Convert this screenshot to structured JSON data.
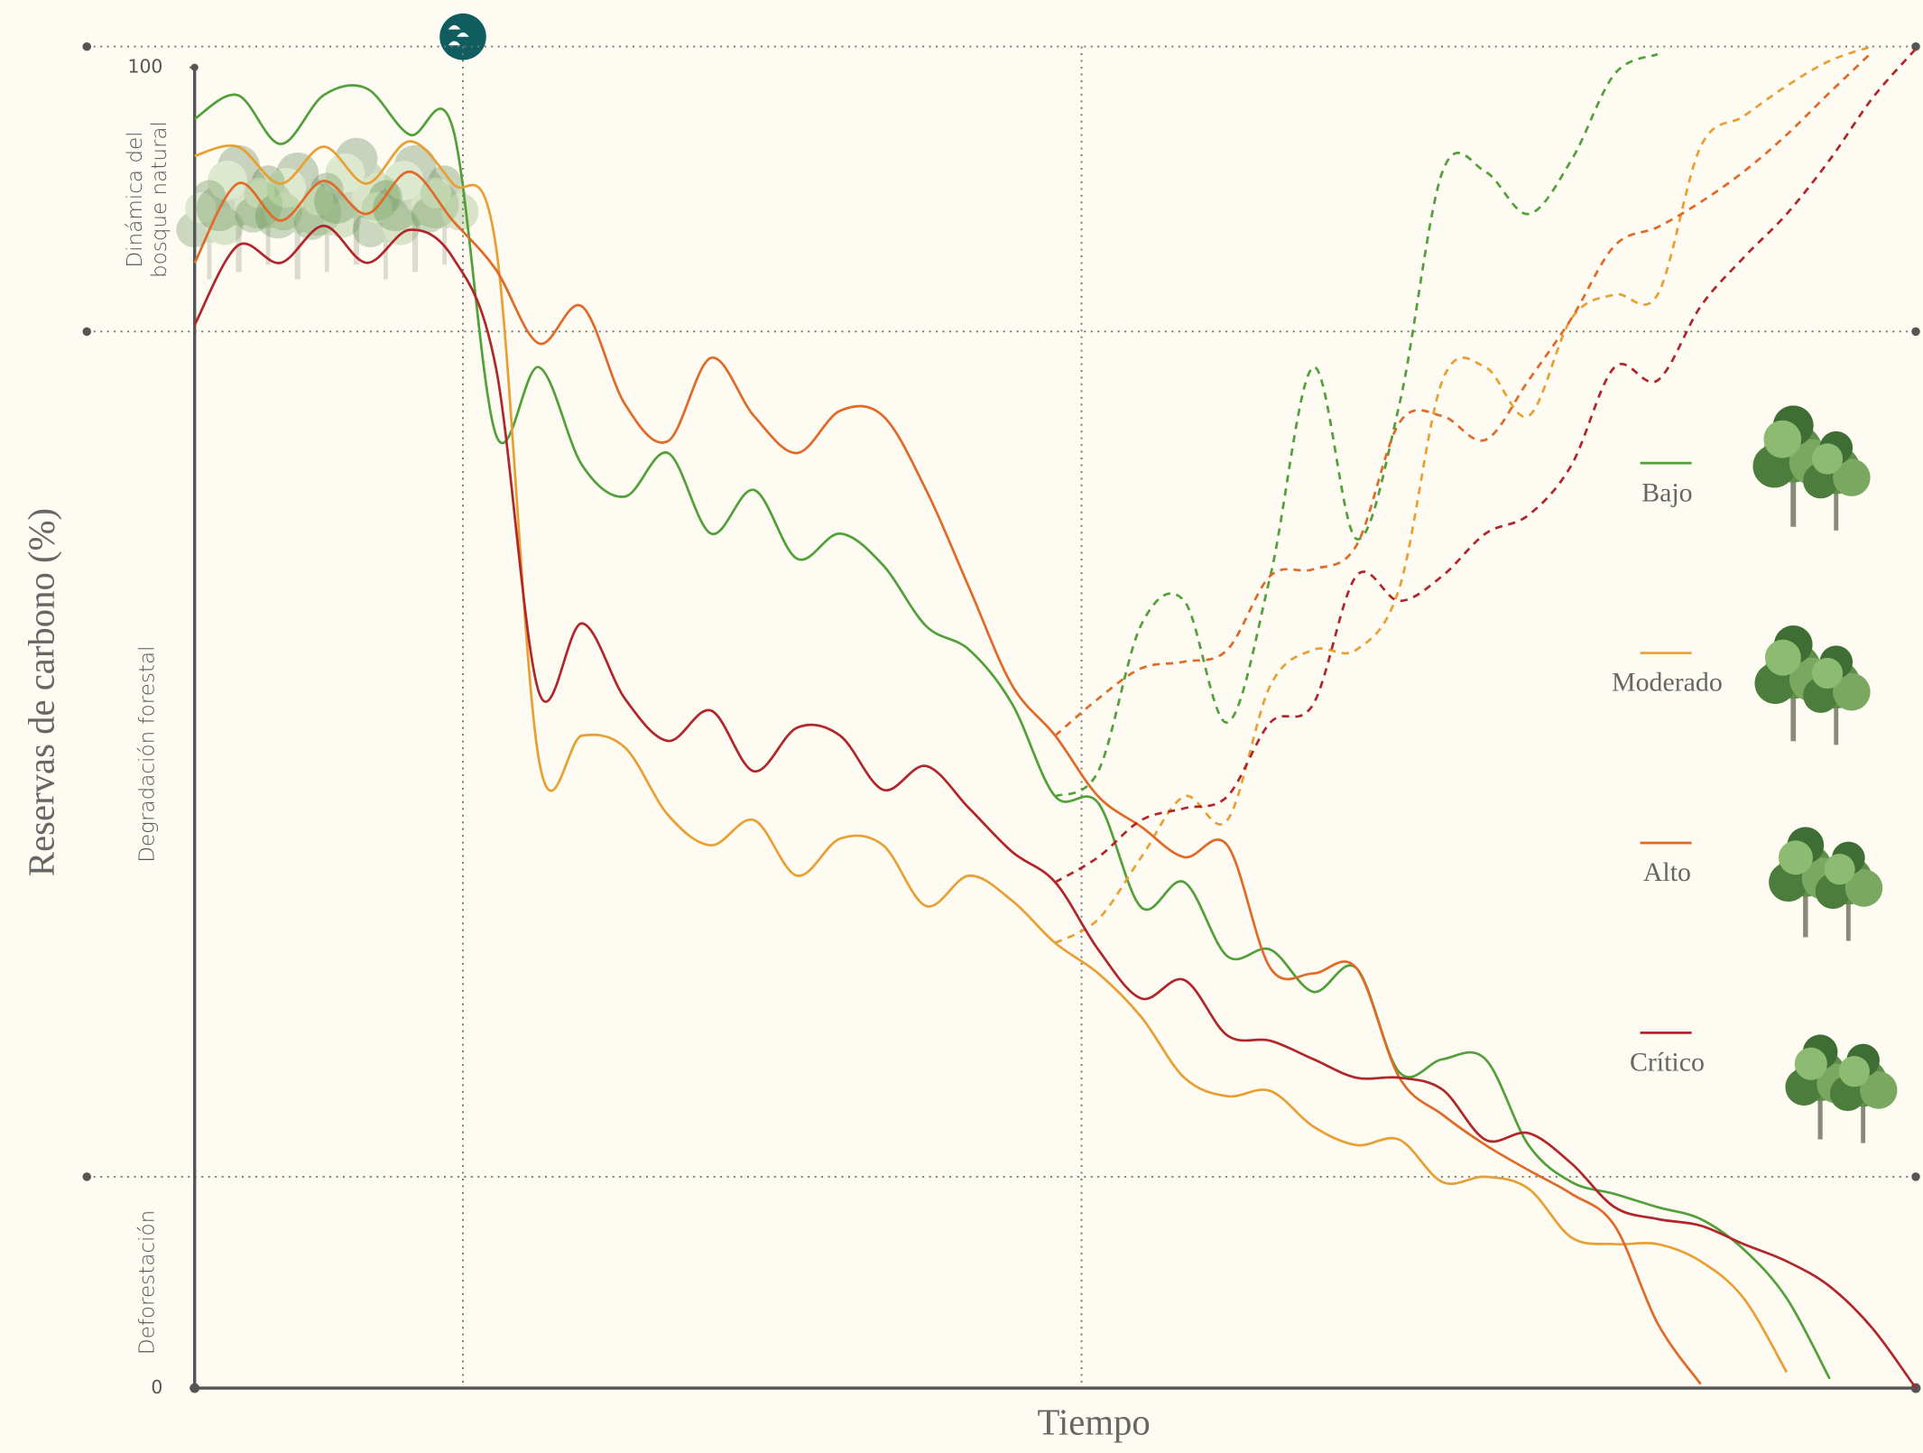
{
  "chart_data": {
    "type": "line",
    "y_label": "Reservas de carbono (%)",
    "x_label": "Tiempo",
    "ylim": [
      0,
      100
    ],
    "yticks": [
      0,
      100
    ],
    "zones": [
      {
        "label_lines": [
          "Dinámica del",
          "bosque natural"
        ],
        "from": 80,
        "to": 100
      },
      {
        "label_lines": [
          "Degradación forestal"
        ],
        "from": 16,
        "to": 80
      },
      {
        "label_lines": [
          "Deforestación"
        ],
        "from": 0,
        "to": 16
      }
    ],
    "legend": "right",
    "categories": [
      null,
      null,
      null,
      null,
      null,
      null,
      null,
      null,
      null,
      null,
      null,
      null,
      null,
      null,
      null,
      null,
      null,
      null,
      null,
      null,
      null,
      null,
      null,
      null,
      null,
      null,
      null,
      null,
      null,
      null,
      null,
      null,
      null,
      null,
      null,
      null,
      null,
      null,
      null,
      null,
      null
    ],
    "series": [
      {
        "name": "Bajo",
        "color": "#52a03a",
        "values": [
          96.1,
          97.9,
          94.2,
          97.9,
          98.4,
          94.9,
          95.4,
          72.2,
          77.3,
          69.9,
          67.5,
          70.8,
          64.7,
          68.0,
          62.8,
          64.7,
          62.3,
          57.7,
          55.9,
          51.8,
          44.8,
          44.3,
          36.4,
          38.3,
          32.7,
          33.2,
          30.0,
          31.8,
          23.9,
          24.9,
          24.9,
          18.4,
          15.6,
          14.7,
          13.7,
          12.8,
          10.5,
          6.8,
          0.7,
          null,
          null
        ],
        "projection_values": [
          null,
          null,
          null,
          null,
          null,
          null,
          null,
          null,
          null,
          null,
          null,
          null,
          null,
          null,
          null,
          null,
          null,
          null,
          null,
          null,
          44.8,
          46.7,
          57.8,
          59.6,
          50.4,
          61.5,
          77.3,
          64.3,
          74.5,
          92.1,
          92.1,
          88.9,
          93.0,
          99.5,
          101.0,
          null,
          null,
          null,
          null,
          null,
          null
        ]
      },
      {
        "name": "Moderado",
        "color": "#e9a032",
        "values": [
          93.3,
          94.0,
          91.2,
          94.0,
          91.2,
          94.4,
          91.2,
          86.5,
          47.6,
          49.4,
          48.5,
          43.4,
          41.1,
          43.0,
          38.8,
          41.6,
          41.1,
          36.5,
          38.8,
          36.9,
          33.7,
          31.4,
          28.1,
          23.5,
          22.1,
          22.5,
          19.8,
          18.4,
          18.8,
          15.6,
          16.0,
          15.1,
          11.4,
          10.9,
          10.9,
          9.6,
          6.8,
          1.2,
          null,
          null,
          null
        ],
        "projection_values": [
          null,
          null,
          null,
          null,
          null,
          null,
          null,
          null,
          null,
          null,
          null,
          null,
          null,
          null,
          null,
          null,
          null,
          null,
          null,
          null,
          33.7,
          35.5,
          40.2,
          44.8,
          43.0,
          53.2,
          55.9,
          55.9,
          60.6,
          76.3,
          77.3,
          73.6,
          81.0,
          82.8,
          82.8,
          94.0,
          96.3,
          98.6,
          100.5,
          101.6,
          null
        ]
      },
      {
        "name": "Alto",
        "color": "#e06a28",
        "values": [
          85.2,
          91.2,
          88.4,
          91.4,
          88.9,
          92.1,
          88.4,
          84.7,
          79.1,
          81.9,
          74.5,
          71.7,
          78.0,
          73.6,
          70.8,
          74.0,
          73.6,
          68.0,
          60.6,
          53.2,
          49.4,
          44.8,
          42.5,
          40.2,
          41.1,
          31.8,
          31.4,
          31.8,
          23.5,
          20.7,
          18.4,
          16.5,
          14.7,
          12.3,
          4.9,
          0.3,
          null,
          null,
          null,
          null,
          null
        ],
        "projection_values": [
          null,
          null,
          null,
          null,
          null,
          null,
          null,
          null,
          null,
          null,
          null,
          null,
          null,
          null,
          null,
          null,
          null,
          null,
          null,
          null,
          49.4,
          52.2,
          54.5,
          55.0,
          55.9,
          61.5,
          62.0,
          63.8,
          73.1,
          73.6,
          71.8,
          76.3,
          81.0,
          86.5,
          87.9,
          89.8,
          92.1,
          94.9,
          98.1,
          101.2,
          null
        ]
      },
      {
        "name": "Crítico",
        "color": "#b0262a",
        "values": [
          80.5,
          86.5,
          85.2,
          88.0,
          85.2,
          87.7,
          85.6,
          77.3,
          52.7,
          57.9,
          52.2,
          49.0,
          51.3,
          46.7,
          50.0,
          49.4,
          45.3,
          47.1,
          43.9,
          40.6,
          38.3,
          33.2,
          29.5,
          30.9,
          26.7,
          26.3,
          24.9,
          23.5,
          23.5,
          22.6,
          18.8,
          19.3,
          17.0,
          13.7,
          12.8,
          12.3,
          10.9,
          9.6,
          7.7,
          4.5,
          0
        ],
        "projection_values": [
          null,
          null,
          null,
          null,
          null,
          null,
          null,
          null,
          null,
          null,
          null,
          null,
          null,
          null,
          null,
          null,
          null,
          null,
          null,
          null,
          38.3,
          40.2,
          43.0,
          43.9,
          44.8,
          50.4,
          51.8,
          61.5,
          59.6,
          61.5,
          64.7,
          66.1,
          69.9,
          77.3,
          76.3,
          81.9,
          85.6,
          88.9,
          93.0,
          97.7,
          101.4
        ]
      }
    ]
  }
}
